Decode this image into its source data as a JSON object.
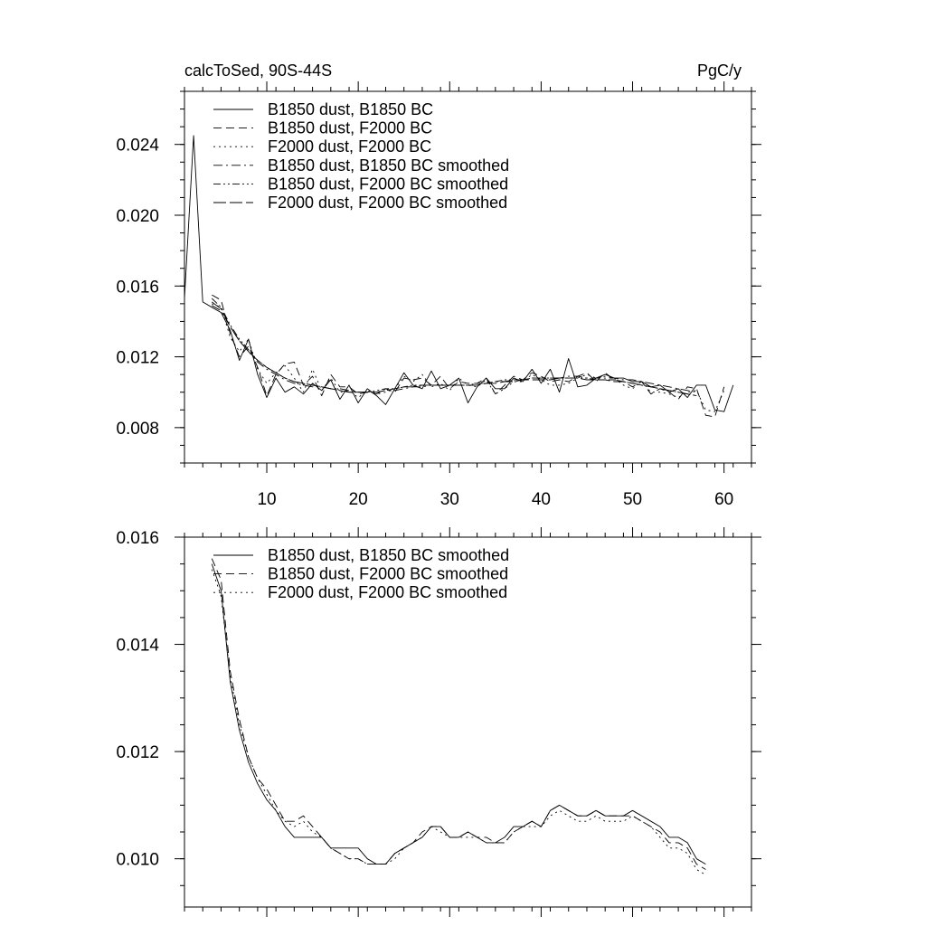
{
  "chart_data": [
    {
      "type": "line",
      "title_left": "calcToSed, 90S-44S",
      "title_right": "PgC/y",
      "xlim": [
        1,
        63
      ],
      "ylim": [
        0.006,
        0.027
      ],
      "x_ticks": [
        10,
        20,
        30,
        40,
        50,
        60
      ],
      "y_ticks": [
        0.008,
        0.012,
        0.016,
        0.02,
        0.024
      ],
      "y_tick_labels": [
        "0.008",
        "0.012",
        "0.016",
        "0.020",
        "0.024"
      ],
      "y_minor_step": 0.001,
      "show_x_tick_labels": true,
      "legend_position": "top-left",
      "series": [
        {
          "name": "B1850 dust, B1850 BC",
          "style": "solid",
          "x_start": 1,
          "values": [
            0.0153,
            0.0245,
            0.0151,
            0.0148,
            0.0145,
            0.0135,
            0.0118,
            0.013,
            0.011,
            0.0097,
            0.0108,
            0.01,
            0.0103,
            0.0099,
            0.0105,
            0.0101,
            0.0107,
            0.0096,
            0.0104,
            0.0094,
            0.0102,
            0.0098,
            0.0093,
            0.0102,
            0.0111,
            0.0104,
            0.0102,
            0.0112,
            0.0102,
            0.0104,
            0.0108,
            0.0094,
            0.0103,
            0.0108,
            0.0102,
            0.0102,
            0.0108,
            0.0106,
            0.0113,
            0.0105,
            0.0113,
            0.01,
            0.0119,
            0.0103,
            0.0104,
            0.0108,
            0.011,
            0.0108,
            0.0108,
            0.0106,
            0.0106,
            0.0103,
            0.0104,
            0.01,
            0.0102,
            0.0097,
            0.0104,
            0.0104,
            0.009,
            0.0089,
            0.0104
          ]
        },
        {
          "name": "B1850 dust, F2000 BC",
          "style": "dash",
          "x_start": 4,
          "values": [
            0.0155,
            0.0152,
            0.0133,
            0.012,
            0.0126,
            0.0114,
            0.0098,
            0.011,
            0.0116,
            0.0117,
            0.0104,
            0.0109,
            0.0098,
            0.011,
            0.0103,
            0.0103,
            0.0099,
            0.01,
            0.0099,
            0.0102,
            0.01,
            0.0108,
            0.0107,
            0.0108,
            0.0104,
            0.0109,
            0.0102,
            0.0106,
            0.0105,
            0.0105,
            0.0108,
            0.0099,
            0.0104,
            0.0109,
            0.0107,
            0.0111,
            0.0109,
            0.0106,
            0.0107,
            0.0106,
            0.0109,
            0.0111,
            0.0106,
            0.0111,
            0.0107,
            0.0106,
            0.0103,
            0.0106,
            0.0099,
            0.0102,
            0.01,
            0.0096,
            0.0103,
            0.0102,
            0.0087,
            0.0086,
            0.0103
          ]
        },
        {
          "name": "F2000 dust, F2000 BC",
          "style": "dot",
          "x_start": 4,
          "values": [
            0.015,
            0.0148,
            0.0131,
            0.0123,
            0.013,
            0.0113,
            0.0105,
            0.0111,
            0.0115,
            0.0108,
            0.01,
            0.0113,
            0.0101,
            0.0108,
            0.01,
            0.0101,
            0.0097,
            0.0101,
            0.0099,
            0.01,
            0.0102,
            0.0109,
            0.0106,
            0.011,
            0.0103,
            0.0105,
            0.0101,
            0.0108,
            0.0104,
            0.0103,
            0.0107,
            0.0099,
            0.0102,
            0.0106,
            0.0106,
            0.011,
            0.0107,
            0.0104,
            0.0104,
            0.0105,
            0.0108,
            0.011,
            0.0108,
            0.0109,
            0.0108,
            0.0104,
            0.0102,
            0.0106,
            0.01,
            0.01,
            0.0099,
            0.0097,
            0.01,
            0.0101,
            0.009,
            0.0089,
            0.0101
          ]
        },
        {
          "name": "B1850 dust, B1850 BC smoothed",
          "style": "dash-dot",
          "x_start": 4,
          "values": [
            0.0149,
            0.0146,
            0.0137,
            0.0129,
            0.0123,
            0.0117,
            0.0113,
            0.011,
            0.0107,
            0.0105,
            0.0104,
            0.0103,
            0.0103,
            0.0102,
            0.0102,
            0.0101,
            0.01,
            0.01,
            0.01,
            0.0101,
            0.0101,
            0.0102,
            0.0103,
            0.0103,
            0.0104,
            0.0104,
            0.0104,
            0.0104,
            0.0104,
            0.0104,
            0.0105,
            0.0106,
            0.0106,
            0.0107,
            0.0107,
            0.0108,
            0.0108,
            0.0108,
            0.0108,
            0.0109,
            0.0109,
            0.0108,
            0.0108,
            0.0108,
            0.0108,
            0.0107,
            0.0107,
            0.0106,
            0.0105,
            0.0104,
            0.0103,
            0.0102,
            0.0101,
            0.01
          ]
        },
        {
          "name": "B1850 dust, F2000 BC smoothed",
          "style": "dash-dot-dot",
          "x_start": 4,
          "values": [
            0.0153,
            0.0148,
            0.0138,
            0.013,
            0.0124,
            0.0118,
            0.0114,
            0.0111,
            0.0108,
            0.0106,
            0.0105,
            0.0104,
            0.0103,
            0.0102,
            0.0101,
            0.01,
            0.01,
            0.01,
            0.0101,
            0.0102,
            0.0102,
            0.0103,
            0.0104,
            0.0104,
            0.0104,
            0.0104,
            0.0104,
            0.0104,
            0.0104,
            0.0105,
            0.0105,
            0.0106,
            0.0107,
            0.0107,
            0.0107,
            0.0108,
            0.0108,
            0.0108,
            0.0108,
            0.0108,
            0.0108,
            0.0108,
            0.0107,
            0.0107,
            0.0107,
            0.0106,
            0.0105,
            0.0104,
            0.0103,
            0.0102,
            0.0101,
            0.01,
            0.0099,
            0.0098
          ]
        },
        {
          "name": "F2000 dust, F2000 BC smoothed",
          "style": "long-dash",
          "x_start": 4,
          "values": [
            0.0151,
            0.0147,
            0.0137,
            0.0129,
            0.0123,
            0.0118,
            0.0114,
            0.0111,
            0.0108,
            0.0106,
            0.0105,
            0.0104,
            0.0103,
            0.0102,
            0.0101,
            0.01,
            0.01,
            0.01,
            0.01,
            0.0101,
            0.0102,
            0.0103,
            0.0103,
            0.0104,
            0.0104,
            0.0104,
            0.0104,
            0.0104,
            0.0104,
            0.0104,
            0.0105,
            0.0105,
            0.0106,
            0.0106,
            0.0107,
            0.0107,
            0.0107,
            0.0107,
            0.0108,
            0.0108,
            0.0108,
            0.0107,
            0.0107,
            0.0107,
            0.0106,
            0.0106,
            0.0105,
            0.0104,
            0.0103,
            0.0102,
            0.0101,
            0.01,
            0.0099,
            0.0098
          ]
        }
      ]
    },
    {
      "type": "line",
      "title_left": "",
      "title_right": "",
      "xlim": [
        1,
        63
      ],
      "ylim": [
        0.0091,
        0.016
      ],
      "x_ticks": [
        10,
        20,
        30,
        40,
        50,
        60
      ],
      "y_ticks": [
        0.01,
        0.012,
        0.014,
        0.016
      ],
      "y_tick_labels": [
        "0.010",
        "0.012",
        "0.014",
        "0.016"
      ],
      "y_minor_step": 0.0005,
      "show_x_tick_labels": false,
      "legend_position": "top-left",
      "series": [
        {
          "name": "B1850 dust, B1850 BC smoothed",
          "style": "solid",
          "x_start": 4,
          "values": [
            0.0155,
            0.015,
            0.0133,
            0.0124,
            0.0118,
            0.0114,
            0.0111,
            0.0109,
            0.0106,
            0.0104,
            0.0104,
            0.0104,
            0.0104,
            0.0102,
            0.0102,
            0.0102,
            0.0102,
            0.01,
            0.0099,
            0.0099,
            0.0101,
            0.0102,
            0.0103,
            0.0104,
            0.0106,
            0.0106,
            0.0104,
            0.0104,
            0.0105,
            0.0104,
            0.0103,
            0.0103,
            0.0104,
            0.0106,
            0.0106,
            0.0107,
            0.0106,
            0.0109,
            0.011,
            0.0109,
            0.0108,
            0.0108,
            0.0109,
            0.0108,
            0.0108,
            0.0108,
            0.0109,
            0.0108,
            0.0107,
            0.0106,
            0.0104,
            0.0104,
            0.0103,
            0.01,
            0.0099
          ]
        },
        {
          "name": "B1850 dust, F2000 BC smoothed",
          "style": "dash",
          "x_start": 4,
          "values": [
            0.0156,
            0.0152,
            0.0135,
            0.0126,
            0.0119,
            0.0115,
            0.0113,
            0.011,
            0.0107,
            0.0107,
            0.0108,
            0.0106,
            0.0104,
            0.0102,
            0.0101,
            0.01,
            0.01,
            0.0099,
            0.0099,
            0.0099,
            0.0101,
            0.0102,
            0.0103,
            0.0105,
            0.0106,
            0.0106,
            0.0104,
            0.0104,
            0.0105,
            0.0104,
            0.0104,
            0.0103,
            0.0103,
            0.0105,
            0.0106,
            0.0107,
            0.0106,
            0.0109,
            0.011,
            0.0109,
            0.0108,
            0.0108,
            0.0109,
            0.0108,
            0.0108,
            0.0108,
            0.0108,
            0.0107,
            0.0106,
            0.0105,
            0.0103,
            0.0103,
            0.0102,
            0.0099,
            0.0098
          ]
        },
        {
          "name": "F2000 dust, F2000 BC smoothed",
          "style": "dot",
          "x_start": 4,
          "values": [
            0.0154,
            0.0149,
            0.0134,
            0.0125,
            0.0119,
            0.0115,
            0.0112,
            0.0109,
            0.0107,
            0.0106,
            0.0107,
            0.0105,
            0.0104,
            0.0102,
            0.0101,
            0.01,
            0.01,
            0.0099,
            0.0099,
            0.0099,
            0.01,
            0.0102,
            0.0103,
            0.0104,
            0.0106,
            0.0105,
            0.0104,
            0.0104,
            0.0104,
            0.0104,
            0.0103,
            0.0103,
            0.0103,
            0.0105,
            0.0106,
            0.0106,
            0.0106,
            0.0108,
            0.0109,
            0.0108,
            0.0107,
            0.0107,
            0.0108,
            0.0107,
            0.0107,
            0.0107,
            0.0108,
            0.0107,
            0.0106,
            0.0104,
            0.0102,
            0.0102,
            0.0101,
            0.0098,
            0.0097
          ]
        }
      ]
    }
  ]
}
